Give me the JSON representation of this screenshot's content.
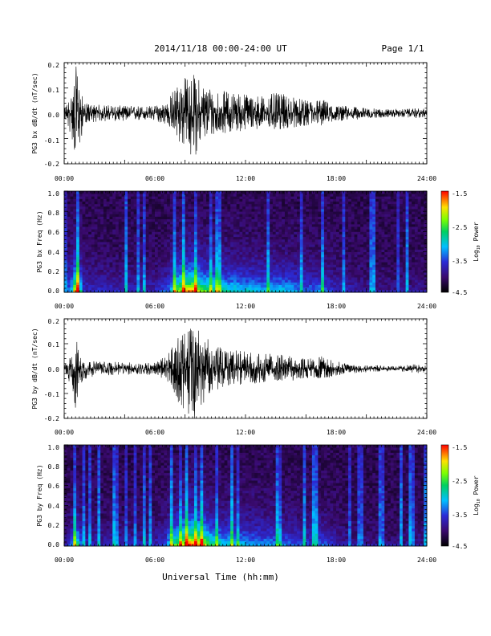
{
  "header": {
    "title": "2014/11/18  00:00-24:00 UT",
    "page": "Page 1/1"
  },
  "xaxis": {
    "label": "Universal Time (hh:mm)",
    "ticks": [
      "00:00",
      "06:00",
      "12:00",
      "18:00",
      "24:00"
    ]
  },
  "chart_data": [
    {
      "type": "line",
      "ylabel": "PG3 bx dB/dt (nT/sec)",
      "x_range": [
        "00:00",
        "24:00"
      ],
      "ylim": [
        -0.2,
        0.2
      ],
      "yticks": [
        "0.2",
        "0.1",
        "0.0",
        "-0.1",
        "-0.2"
      ],
      "envelope": {
        "x_hours": [
          0,
          0.5,
          0.8,
          1.0,
          1.3,
          2,
          4,
          6,
          6.9,
          7.3,
          7.8,
          8.4,
          8.8,
          9.1,
          9.6,
          10.5,
          12,
          13,
          14,
          15,
          16,
          17,
          18,
          18.7,
          20,
          22,
          23.6,
          24
        ],
        "upper": [
          0.02,
          0.08,
          0.19,
          0.12,
          0.04,
          0.035,
          0.03,
          0.03,
          0.05,
          0.11,
          0.14,
          0.16,
          0.15,
          0.12,
          0.11,
          0.09,
          0.08,
          0.07,
          0.08,
          0.07,
          0.05,
          0.06,
          0.03,
          0.03,
          0.02,
          0.015,
          0.02,
          0.015
        ],
        "lower": [
          -0.02,
          -0.1,
          -0.2,
          -0.15,
          -0.04,
          -0.035,
          -0.03,
          -0.03,
          -0.05,
          -0.1,
          -0.13,
          -0.18,
          -0.16,
          -0.11,
          -0.1,
          -0.08,
          -0.07,
          -0.06,
          -0.07,
          -0.06,
          -0.05,
          -0.05,
          -0.03,
          -0.03,
          -0.02,
          -0.015,
          -0.02,
          -0.015
        ]
      }
    },
    {
      "type": "heatmap",
      "ylabel": "PG3 bx Freq (Hz)",
      "ylim": [
        0.0,
        1.0
      ],
      "yticks": [
        "1.0",
        "0.8",
        "0.6",
        "0.4",
        "0.2",
        "0.0"
      ],
      "colorbar": {
        "label": "Log10 Power",
        "range": [
          -4.5,
          -1.5
        ],
        "ticks": [
          "-1.5",
          "-2.5",
          "-3.5",
          "-4.5"
        ]
      }
    },
    {
      "type": "line",
      "ylabel": "PG3 by dB/dt (nT/sec)",
      "x_range": [
        "00:00",
        "24:00"
      ],
      "ylim": [
        -0.2,
        0.2
      ],
      "yticks": [
        "0.2",
        "0.1",
        "0.0",
        "-0.1",
        "-0.2"
      ],
      "envelope": {
        "x_hours": [
          0,
          0.5,
          0.7,
          0.8,
          1.0,
          1.5,
          2,
          4,
          6,
          6.7,
          7.2,
          7.8,
          8.3,
          8.8,
          9.2,
          9.6,
          10.5,
          12,
          13,
          14,
          15,
          16,
          17,
          18,
          18.7,
          20,
          22,
          23.6,
          24
        ],
        "upper": [
          0.02,
          0.05,
          0.11,
          0.13,
          0.06,
          0.03,
          0.03,
          0.025,
          0.025,
          0.05,
          0.1,
          0.14,
          0.17,
          0.17,
          0.15,
          0.11,
          0.08,
          0.07,
          0.06,
          0.06,
          0.05,
          0.04,
          0.05,
          0.03,
          0.02,
          0.015,
          0.01,
          0.02,
          0.01
        ],
        "lower": [
          -0.02,
          -0.07,
          -0.15,
          -0.18,
          -0.08,
          -0.04,
          -0.03,
          -0.025,
          -0.025,
          -0.05,
          -0.1,
          -0.16,
          -0.2,
          -0.2,
          -0.14,
          -0.1,
          -0.08,
          -0.06,
          -0.06,
          -0.05,
          -0.05,
          -0.04,
          -0.04,
          -0.03,
          -0.02,
          -0.015,
          -0.01,
          -0.02,
          -0.01
        ]
      }
    },
    {
      "type": "heatmap",
      "ylabel": "PG3 by Freq (Hz)",
      "ylim": [
        0.0,
        1.0
      ],
      "yticks": [
        "1.0",
        "0.8",
        "0.6",
        "0.4",
        "0.2",
        "0.0"
      ],
      "colorbar": {
        "label": "Log10 Power",
        "range": [
          -4.5,
          -1.5
        ],
        "ticks": [
          "-1.5",
          "-2.5",
          "-3.5",
          "-4.5"
        ]
      }
    }
  ]
}
